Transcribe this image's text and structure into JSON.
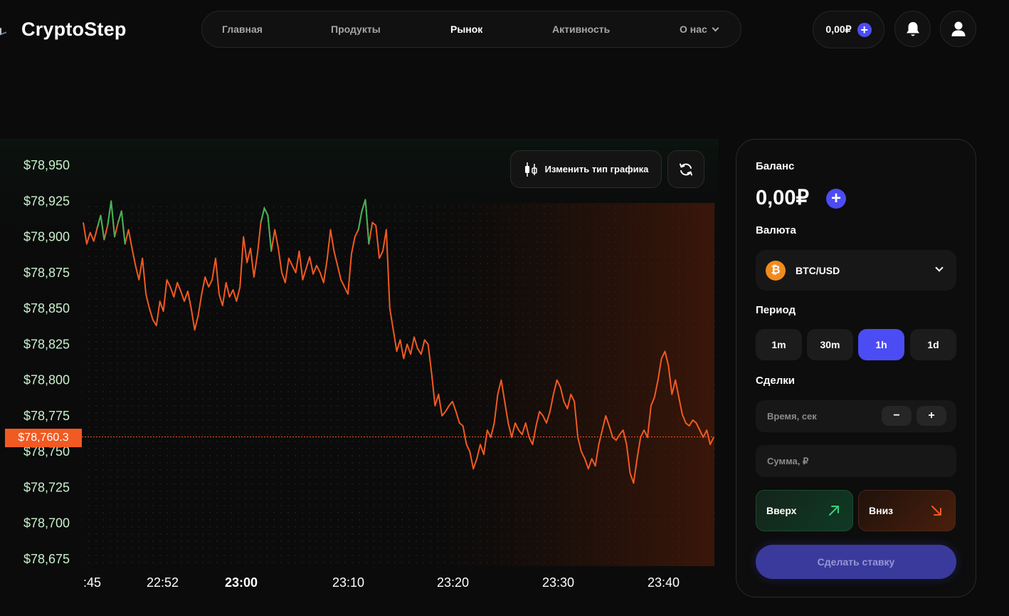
{
  "header": {
    "logo_text": "CryptoStep",
    "nav": [
      {
        "label": "Главная",
        "active": false
      },
      {
        "label": "Продукты",
        "active": false
      },
      {
        "label": "Рынок",
        "active": true
      },
      {
        "label": "Активность",
        "active": false
      },
      {
        "label": "О нас",
        "active": false,
        "has_dropdown": true
      }
    ],
    "balance": "0,00₽",
    "icons": [
      "plus-icon",
      "bell-icon",
      "user-icon"
    ]
  },
  "chart_toolbar": {
    "change_type_label": "Изменить тип графика",
    "icons": [
      "candlestick-icon",
      "refresh-icon"
    ]
  },
  "chart_data": {
    "type": "line",
    "y_ticks": [
      "$78,950",
      "$78,925",
      "$78,900",
      "$78,875",
      "$78,850",
      "$78,825",
      "$78,800",
      "$78,775",
      "$78,750",
      "$78,725",
      "$78,700",
      "$78,675"
    ],
    "x_ticks": [
      ":45",
      "22:52",
      "23:00",
      "23:10",
      "23:20",
      "23:30",
      "23:40"
    ],
    "current_price_label": "$78,760.3",
    "current_price": 78760.3,
    "ylim": [
      78675,
      78950
    ],
    "colors": {
      "line": "#f15a22",
      "line_high": "#3cb55a",
      "price_tag": "#f15a22"
    },
    "series": [
      {
        "values": [
          78910,
          78895,
          78903,
          78897,
          78906,
          78915,
          78898,
          78908,
          78925,
          78900,
          78910,
          78918,
          78895,
          78905,
          78892,
          78880,
          78870,
          78885,
          78860,
          78850,
          78842,
          78838,
          78855,
          78848,
          78870,
          78865,
          78858,
          78868,
          78862,
          78855,
          78862,
          78850,
          78835,
          78845,
          78860,
          78872,
          78865,
          78870,
          78885,
          78860,
          78852,
          78868,
          78858,
          78863,
          78855,
          78865,
          78900,
          78882,
          78892,
          78872,
          78888,
          78910,
          78920,
          78915,
          78890,
          78905,
          78892,
          78875,
          78868,
          78885,
          78880,
          78875,
          78890,
          78870,
          78878,
          78886,
          78874,
          78880,
          78875,
          78868,
          78884,
          78905,
          78890,
          78880,
          78870,
          78865,
          78860,
          78888,
          78900,
          78905,
          78918,
          78926,
          78895,
          78910,
          78908,
          78885,
          78890,
          78905,
          78850,
          78835,
          78820,
          78828,
          78815,
          78825,
          78818,
          78830,
          78822,
          78818,
          78828,
          78825,
          78805,
          78782,
          78790,
          78775,
          78778,
          78782,
          78785,
          78778,
          78770,
          78768,
          78755,
          78750,
          78738,
          78745,
          78755,
          78748,
          78765,
          78760,
          78770,
          78790,
          78800,
          78785,
          78770,
          78760,
          78770,
          78765,
          78762,
          78770,
          78760,
          78755,
          78768,
          78778,
          78775,
          78770,
          78778,
          78790,
          78800,
          78795,
          78785,
          78780,
          78790,
          78785,
          78760,
          78750,
          78745,
          78738,
          78745,
          78740,
          78755,
          78765,
          78775,
          78768,
          78760,
          78758,
          78762,
          78765,
          78755,
          78735,
          78728,
          78745,
          78760,
          78765,
          78760,
          78782,
          78788,
          78800,
          78815,
          78820,
          78810,
          78790,
          78800,
          78788,
          78776,
          78770,
          78768,
          78772,
          78770,
          78765,
          78760,
          78765,
          78755,
          78760
        ]
      }
    ],
    "grid": "dotted"
  },
  "panel": {
    "balance_label": "Баланс",
    "balance_value": "0,00₽",
    "currency_label": "Валюта",
    "currency_value": "BTC/USD",
    "currency_icon_glyph": "₿",
    "period_label": "Период",
    "periods": [
      {
        "label": "1m",
        "active": false
      },
      {
        "label": "30m",
        "active": false
      },
      {
        "label": "1h",
        "active": true
      },
      {
        "label": "1d",
        "active": false
      }
    ],
    "deals_label": "Сделки",
    "time_placeholder": "Время, сек",
    "sum_placeholder": "Сумма, ₽",
    "minus_label": "−",
    "plus_label": "+",
    "up_label": "Вверх",
    "down_label": "Вниз",
    "submit_label": "Сделать ставку"
  }
}
